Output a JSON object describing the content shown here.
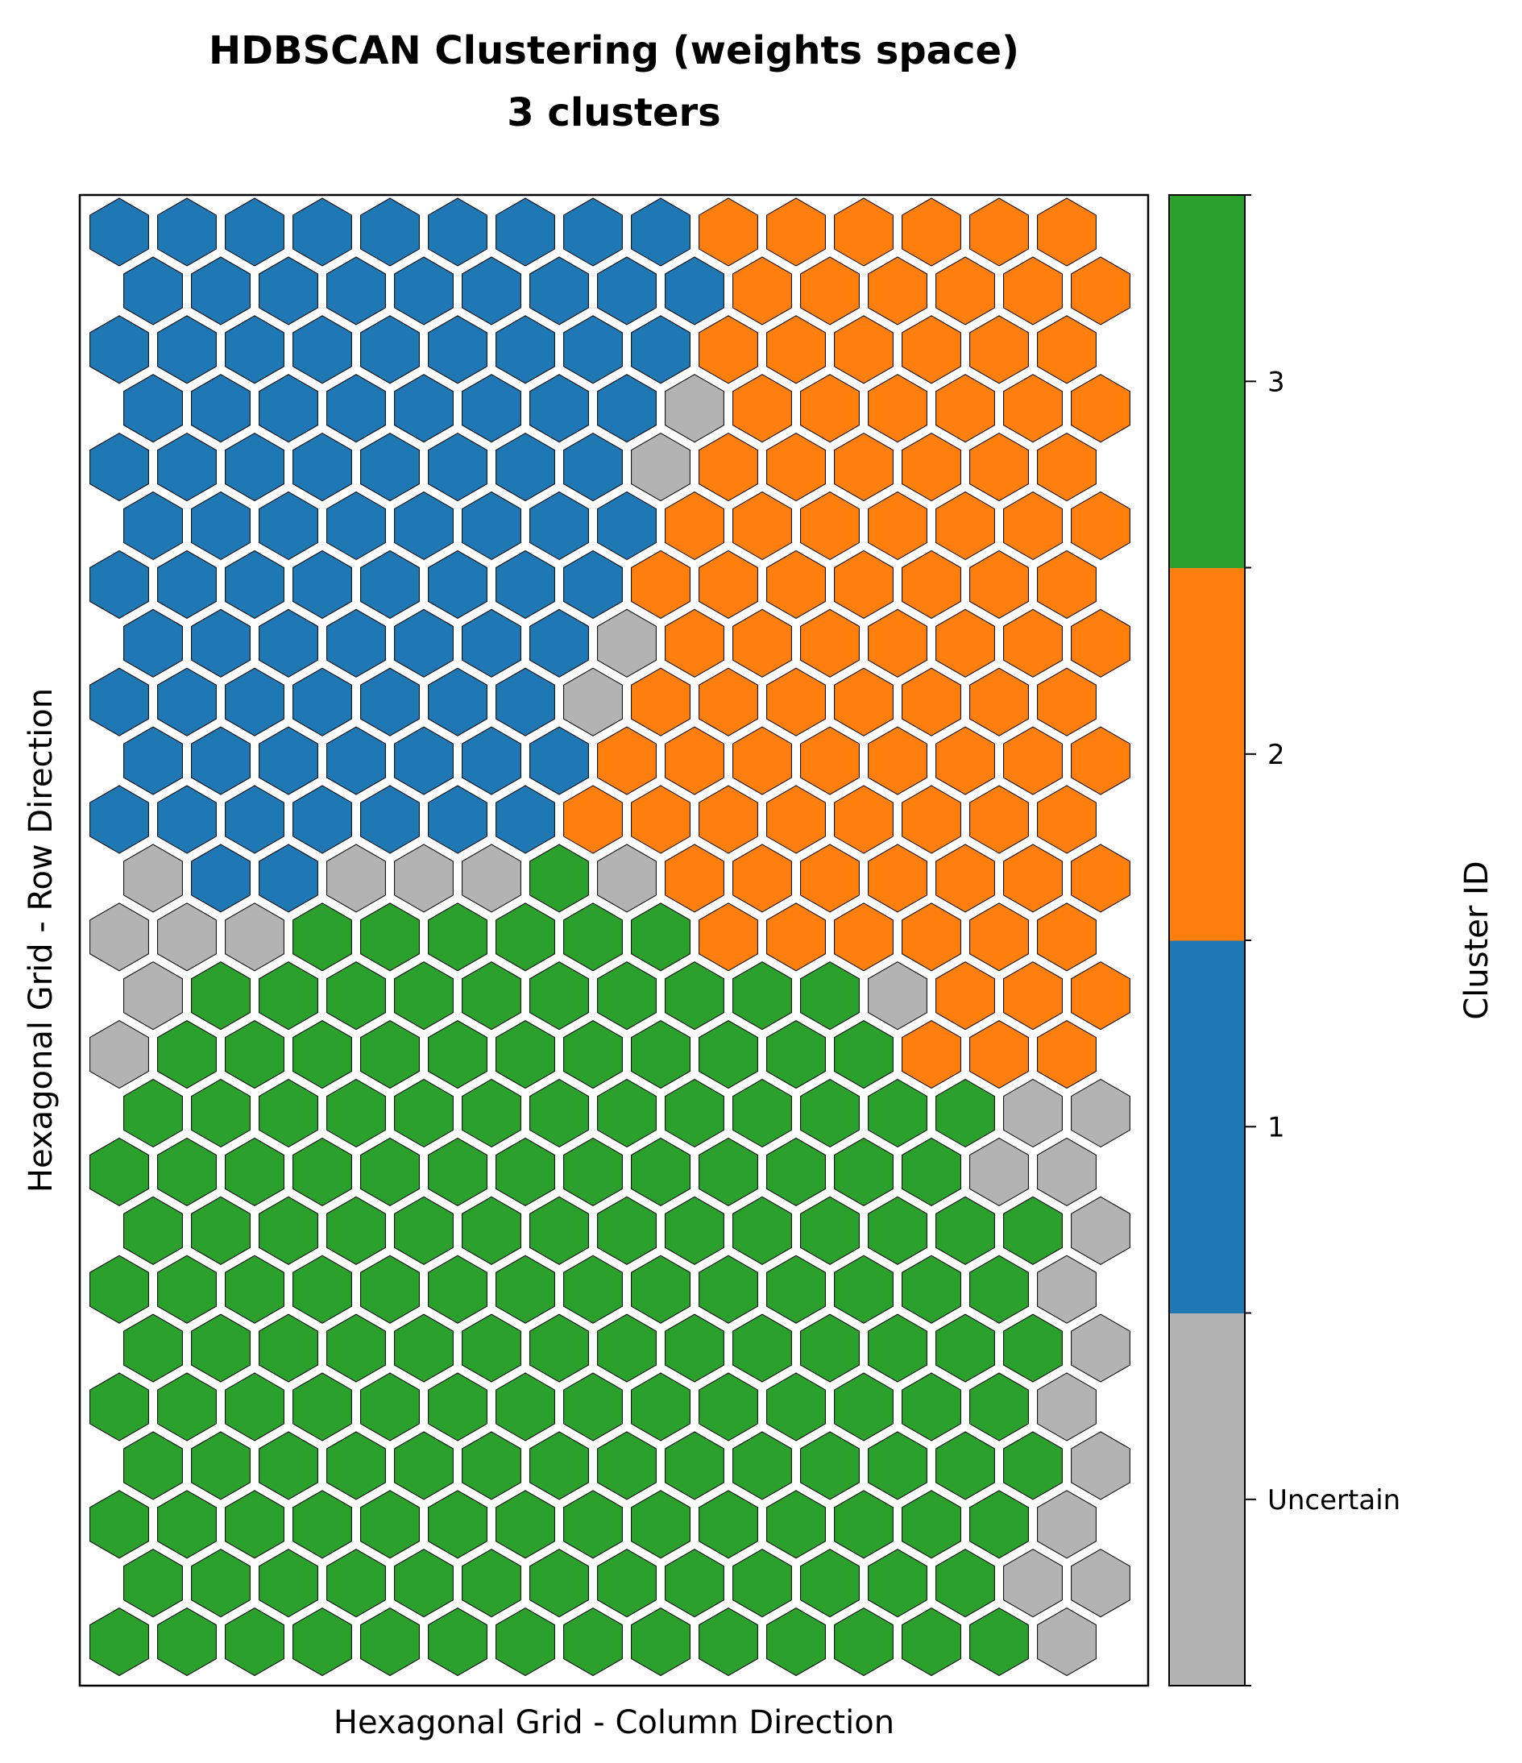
{
  "chart_data": {
    "type": "heatmap",
    "title_lines": [
      "HDBSCAN Clustering (weights space)",
      "3 clusters"
    ],
    "xlabel": "Hexagonal Grid - Column Direction",
    "ylabel": "Hexagonal Grid - Row Direction",
    "grid": false,
    "legend_position": "right (colorbar)",
    "colorbar": {
      "label": "Cluster ID",
      "categories": [
        {
          "id": 0,
          "label": "Uncertain",
          "color": "#b3b3b3"
        },
        {
          "id": 1,
          "label": "1",
          "color": "#1f77b4"
        },
        {
          "id": 2,
          "label": "2",
          "color": "#ff7f0e"
        },
        {
          "id": 3,
          "label": "3",
          "color": "#2ca02c"
        }
      ]
    },
    "grid_size": {
      "rows": 25,
      "cols": 15
    },
    "cell_codes": [
      "111111111222222",
      "111111111222222",
      "111111111222222",
      "111111110222222",
      "111111110222222",
      "111111112222222",
      "111111112222222",
      "111111102222222",
      "111111102222222",
      "111111122222222",
      "111111122222222",
      "011000302222222",
      "000333333222222",
      "033333333330222",
      "033333333333222",
      "333333333333300",
      "333333333333300",
      "333333333333330",
      "333333333333330",
      "333333333333330",
      "333333333333330",
      "333333333333330",
      "333333333333330",
      "333333333333300",
      "333333333333330"
    ]
  }
}
